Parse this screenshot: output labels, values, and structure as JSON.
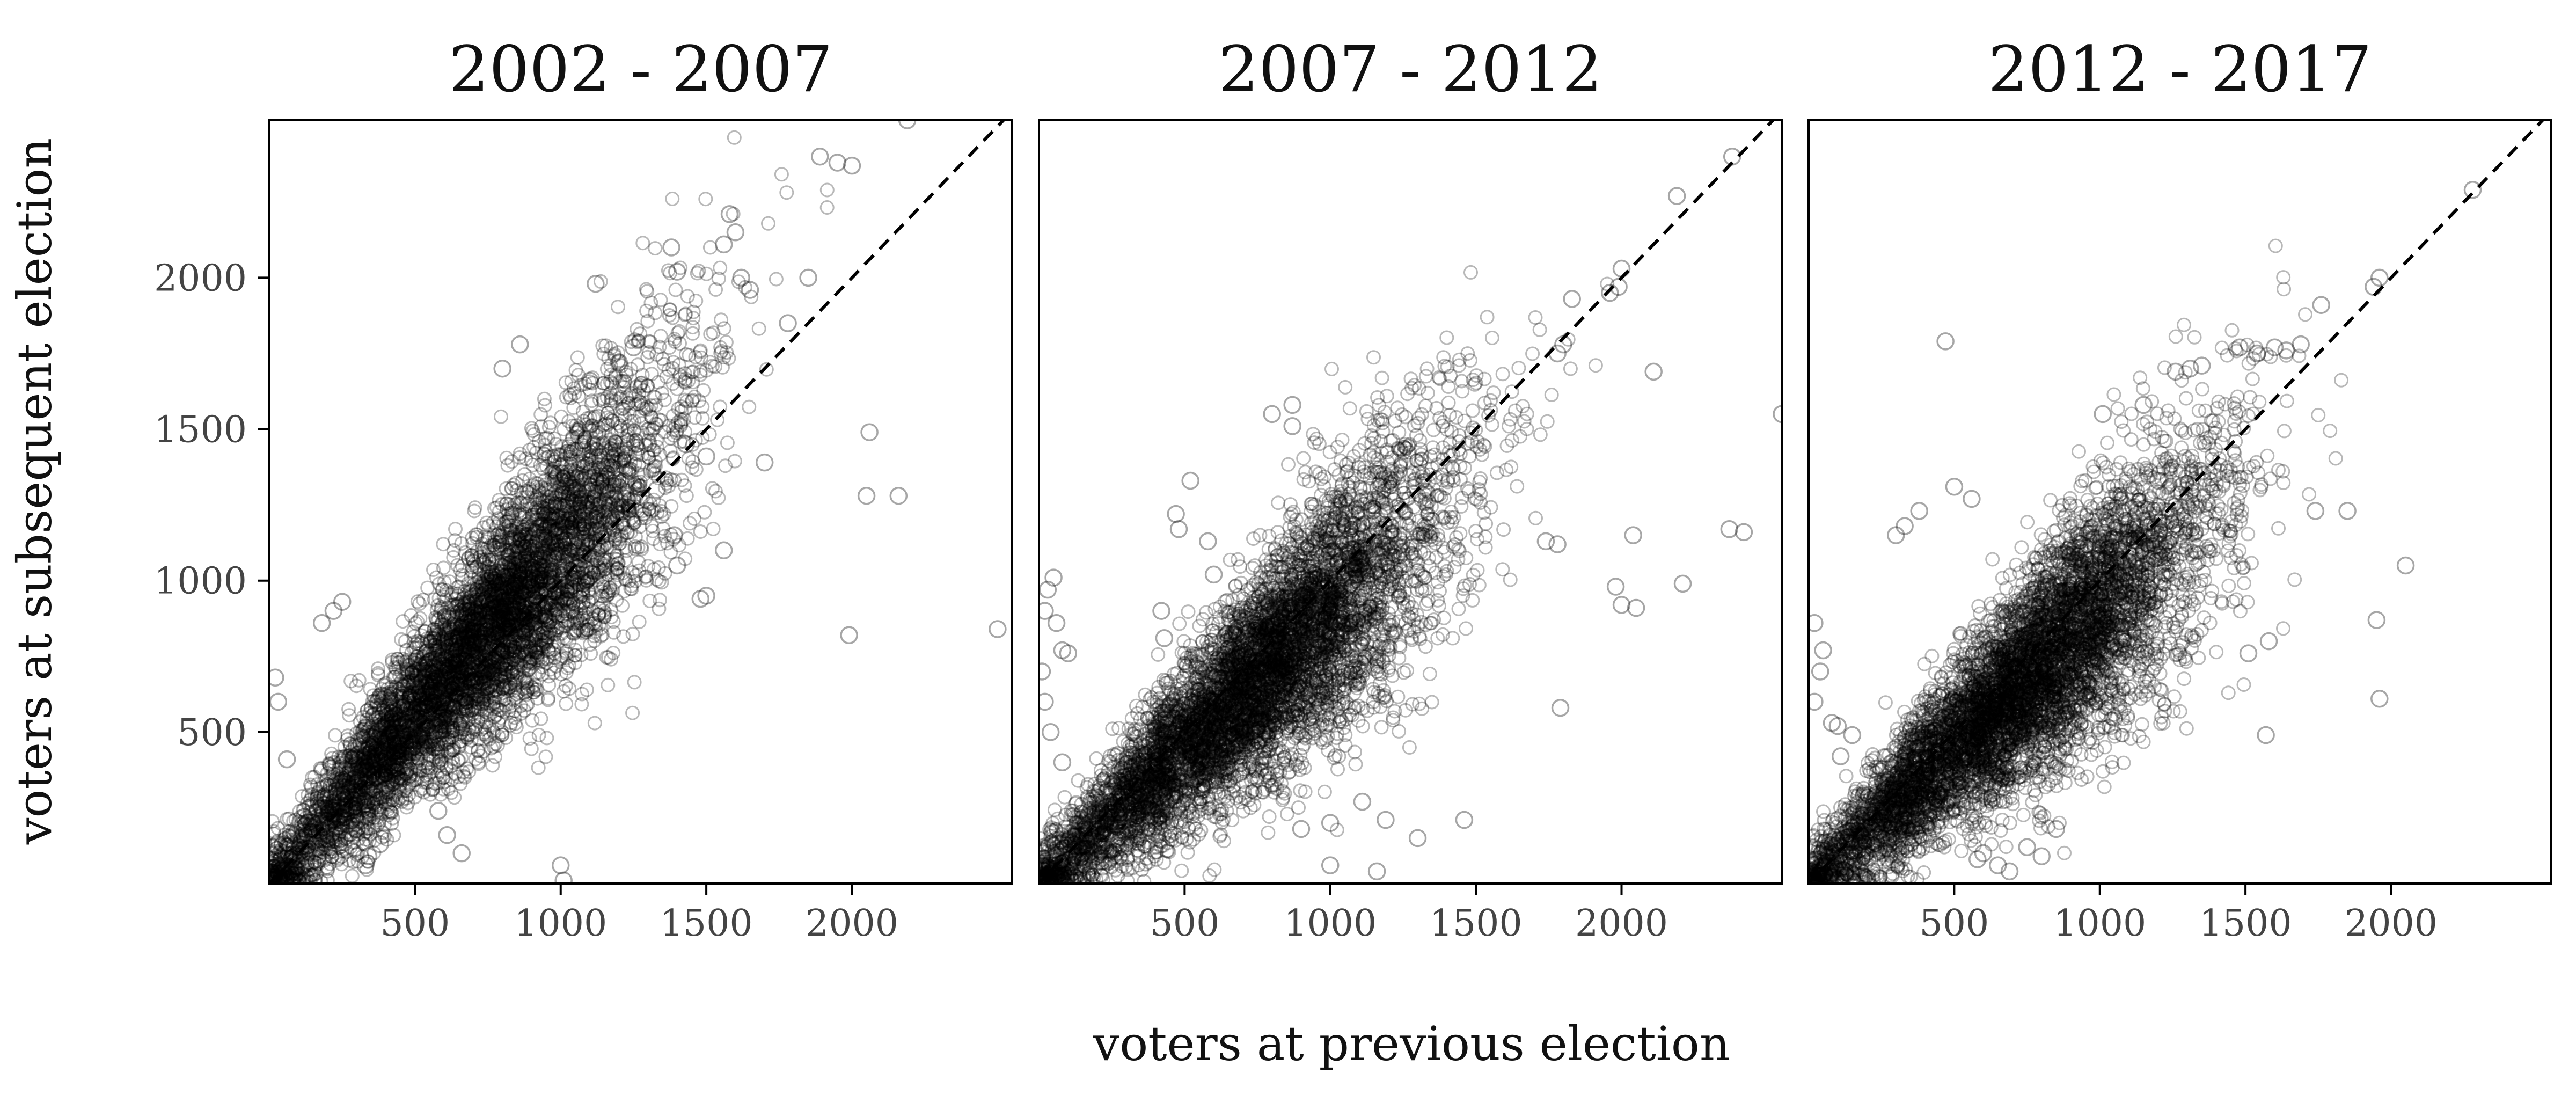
{
  "chart_data": {
    "type": "scatter",
    "xlabel": "voters at previous election",
    "ylabel": "voters at subsequent election",
    "xlim": [
      0,
      2550
    ],
    "ylim": [
      0,
      2520
    ],
    "x_ticks": [
      500,
      1000,
      1500,
      2000
    ],
    "y_ticks": [
      500,
      1000,
      1500,
      2000
    ],
    "x_tick_labels": [
      "500",
      "1000",
      "1500",
      "2000"
    ],
    "y_tick_labels": [
      "500",
      "1000",
      "1500",
      "2000"
    ],
    "reference_line": "y = x (dashed)",
    "grid": false,
    "marker": "hollow circle",
    "marker_color": "#000000",
    "marker_opacity": 0.35,
    "panels": [
      {
        "title": "2002 - 2007",
        "x": [
          2190,
          1890,
          1950,
          2000,
          2060,
          2050,
          2160,
          1580,
          1600,
          1560,
          1620,
          1380,
          1400,
          1650,
          1780,
          1700,
          1850,
          1200,
          1250,
          1120,
          2500,
          1990,
          860,
          800,
          1100,
          1500,
          1430,
          1560,
          1330,
          1400,
          1480,
          1500,
          1390,
          1000,
          1010,
          660,
          610,
          580,
          340,
          380,
          330,
          300,
          150,
          120,
          60,
          30,
          20,
          250,
          220,
          180
        ],
        "y": [
          2520,
          2400,
          2380,
          2370,
          1490,
          1280,
          1280,
          2210,
          2150,
          2110,
          2000,
          2100,
          2020,
          1960,
          1850,
          1390,
          2000,
          1720,
          1770,
          1980,
          840,
          820,
          1780,
          1700,
          1660,
          1410,
          1450,
          1100,
          1300,
          1050,
          940,
          950,
          1150,
          60,
          10,
          100,
          160,
          240,
          90,
          130,
          60,
          180,
          180,
          220,
          410,
          600,
          680,
          930,
          900,
          860
        ]
      },
      {
        "title": "2007 - 2012",
        "x": [
          2380,
          2190,
          2000,
          1990,
          1960,
          1830,
          1800,
          2110,
          2550,
          2370,
          2420,
          2210,
          1980,
          2000,
          2050,
          1790,
          2040,
          1740,
          1780,
          870,
          800,
          870,
          1460,
          1300,
          1160,
          1110,
          1000,
          470,
          480,
          520,
          580,
          600,
          430,
          420,
          50,
          30,
          20,
          60,
          80,
          100,
          10,
          20,
          40,
          80,
          1190,
          1000,
          900,
          1780
        ],
        "y": [
          2400,
          2270,
          2030,
          1970,
          1950,
          1930,
          1780,
          1690,
          1550,
          1170,
          1160,
          990,
          980,
          920,
          910,
          580,
          1150,
          1130,
          1120,
          1580,
          1550,
          1510,
          210,
          150,
          40,
          270,
          60,
          1220,
          1170,
          1330,
          1130,
          1020,
          810,
          900,
          1010,
          970,
          900,
          860,
          770,
          760,
          700,
          600,
          500,
          400,
          210,
          200,
          180,
          1750
        ]
      },
      {
        "title": "2012 - 2017",
        "x": [
          2280,
          1960,
          1940,
          1760,
          1690,
          1640,
          1600,
          1850,
          2050,
          1950,
          1960,
          1570,
          1580,
          1510,
          1740,
          1480,
          1540,
          1010,
          1150,
          1200,
          1100,
          470,
          500,
          560,
          300,
          330,
          380,
          20,
          50,
          40,
          20,
          80,
          100,
          150,
          110,
          750,
          800,
          850,
          580,
          600,
          650,
          690,
          1350,
          1310,
          1260
        ],
        "y": [
          2290,
          2000,
          1970,
          1910,
          1780,
          1760,
          1770,
          1230,
          1050,
          870,
          610,
          490,
          800,
          760,
          1230,
          1770,
          1750,
          1550,
          1580,
          1330,
          1140,
          1790,
          1310,
          1270,
          1150,
          1180,
          1230,
          860,
          770,
          700,
          600,
          530,
          520,
          490,
          420,
          120,
          90,
          180,
          80,
          100,
          60,
          40,
          1710,
          1700,
          1690
        ]
      }
    ]
  }
}
